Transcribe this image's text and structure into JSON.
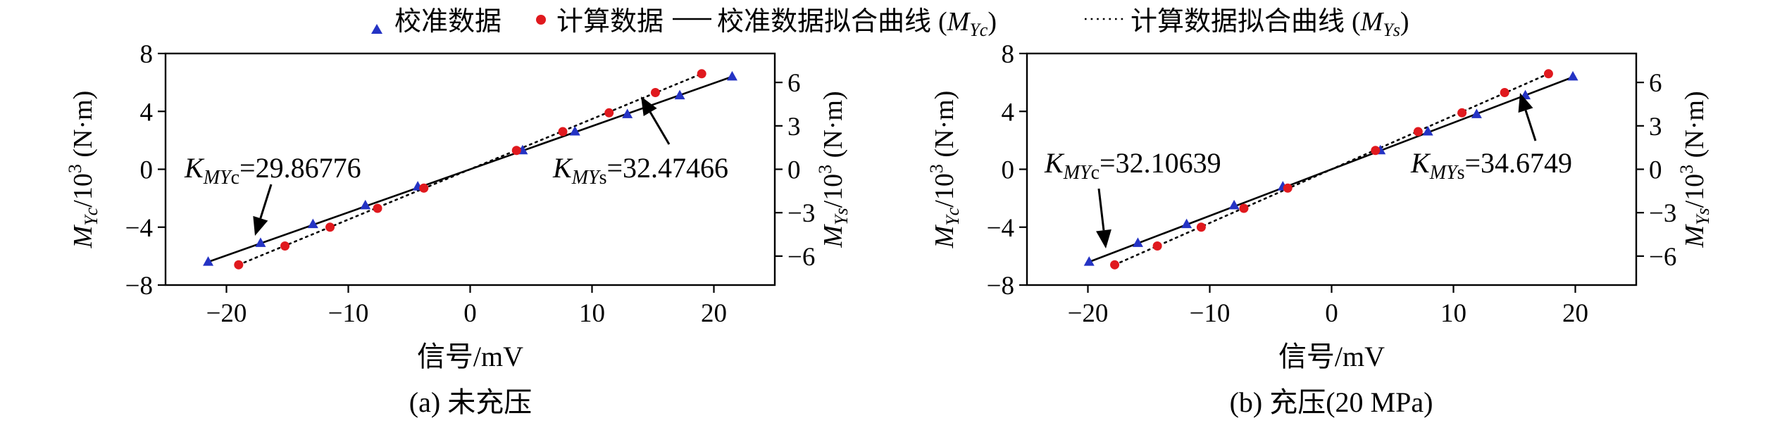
{
  "legend": {
    "items": [
      {
        "label": "校准数据",
        "marker": "triangle",
        "color": "#2433c4"
      },
      {
        "label": "计算数据",
        "marker": "circle",
        "color": "#e0191e"
      },
      {
        "label": "校准数据拟合曲线",
        "line": "solid",
        "sub": "Yc"
      },
      {
        "label": "计算数据拟合曲线",
        "line": "dotted",
        "sub": "Ys"
      }
    ]
  },
  "x_label": "信号/mV",
  "y_left_label": {
    "sub": "Yc",
    "rest": "/10",
    "sup": "3",
    "unit": " (N·m)"
  },
  "y_right_label": {
    "sub": "Ys",
    "rest": "/10",
    "sup": "3",
    "unit": " (N·m)"
  },
  "chart_data": [
    {
      "type": "scatter",
      "caption": "(a) 未充压",
      "xlim": [
        -25,
        25
      ],
      "ylim_left": [
        -8,
        8
      ],
      "ylim_right": [
        -8,
        8
      ],
      "x_ticks": [
        -20,
        -10,
        0,
        10,
        20
      ],
      "y_left_ticks": [
        -8,
        -4,
        0,
        4,
        8
      ],
      "y_right_ticks": [
        -6,
        -3,
        0,
        3,
        6
      ],
      "series": [
        {
          "name": "校准数据",
          "marker": "triangle",
          "points": [
            [
              -21.5,
              -6.4
            ],
            [
              -17.2,
              -5.1
            ],
            [
              -12.9,
              -3.8
            ],
            [
              -8.6,
              -2.5
            ],
            [
              -4.3,
              -1.2
            ],
            [
              4.3,
              1.3
            ],
            [
              8.6,
              2.6
            ],
            [
              12.9,
              3.8
            ],
            [
              17.2,
              5.1
            ],
            [
              21.5,
              6.4
            ]
          ]
        },
        {
          "name": "计算数据",
          "marker": "circle",
          "points": [
            [
              -19.0,
              -6.6
            ],
            [
              -15.2,
              -5.3
            ],
            [
              -11.5,
              -4.0
            ],
            [
              -7.6,
              -2.7
            ],
            [
              -3.8,
              -1.3
            ],
            [
              3.8,
              1.3
            ],
            [
              7.6,
              2.6
            ],
            [
              11.4,
              3.9
            ],
            [
              15.2,
              5.3
            ],
            [
              19.0,
              6.6
            ]
          ]
        }
      ],
      "fit_lines": [
        {
          "name": "校准数据拟合曲线",
          "style": "solid",
          "slope_label": "K",
          "slope_sub": "MYc",
          "slope_value": "=29.86776",
          "x_range": [
            -21.5,
            21.5
          ],
          "y_range": [
            -6.4,
            6.4
          ]
        },
        {
          "name": "计算数据拟合曲线",
          "style": "dotted",
          "slope_label": "K",
          "slope_sub": "MYs",
          "slope_value": "=32.47466",
          "x_range": [
            -19.0,
            19.0
          ],
          "y_range": [
            -6.6,
            6.6
          ]
        }
      ]
    },
    {
      "type": "scatter",
      "caption": "(b) 充压(20 MPa)",
      "xlim": [
        -25,
        25
      ],
      "ylim_left": [
        -8,
        8
      ],
      "ylim_right": [
        -8,
        8
      ],
      "x_ticks": [
        -20,
        -10,
        0,
        10,
        20
      ],
      "y_left_ticks": [
        -8,
        -4,
        0,
        4,
        8
      ],
      "y_right_ticks": [
        -6,
        -3,
        0,
        3,
        6
      ],
      "series": [
        {
          "name": "校准数据",
          "marker": "triangle",
          "points": [
            [
              -19.9,
              -6.4
            ],
            [
              -15.9,
              -5.1
            ],
            [
              -11.9,
              -3.8
            ],
            [
              -8.0,
              -2.5
            ],
            [
              -4.0,
              -1.2
            ],
            [
              4.0,
              1.3
            ],
            [
              7.9,
              2.6
            ],
            [
              11.9,
              3.8
            ],
            [
              15.9,
              5.1
            ],
            [
              19.8,
              6.4
            ]
          ]
        },
        {
          "name": "计算数据",
          "marker": "circle",
          "points": [
            [
              -17.8,
              -6.6
            ],
            [
              -14.3,
              -5.3
            ],
            [
              -10.7,
              -4.0
            ],
            [
              -7.2,
              -2.7
            ],
            [
              -3.6,
              -1.3
            ],
            [
              3.6,
              1.3
            ],
            [
              7.1,
              2.6
            ],
            [
              10.7,
              3.9
            ],
            [
              14.2,
              5.3
            ],
            [
              17.8,
              6.6
            ]
          ]
        }
      ],
      "fit_lines": [
        {
          "name": "校准数据拟合曲线",
          "style": "solid",
          "slope_label": "K",
          "slope_sub": "MYc",
          "slope_value": "=32.10639",
          "x_range": [
            -19.9,
            19.9
          ],
          "y_range": [
            -6.4,
            6.4
          ]
        },
        {
          "name": "计算数据拟合曲线",
          "style": "dotted",
          "slope_label": "K",
          "slope_sub": "MYs",
          "slope_value": "=34.6749",
          "x_range": [
            -17.8,
            17.8
          ],
          "y_range": [
            -6.6,
            6.6
          ]
        }
      ]
    }
  ],
  "colors": {
    "calibration": "#2433c4",
    "computed": "#e0191e",
    "axis": "#000000"
  }
}
